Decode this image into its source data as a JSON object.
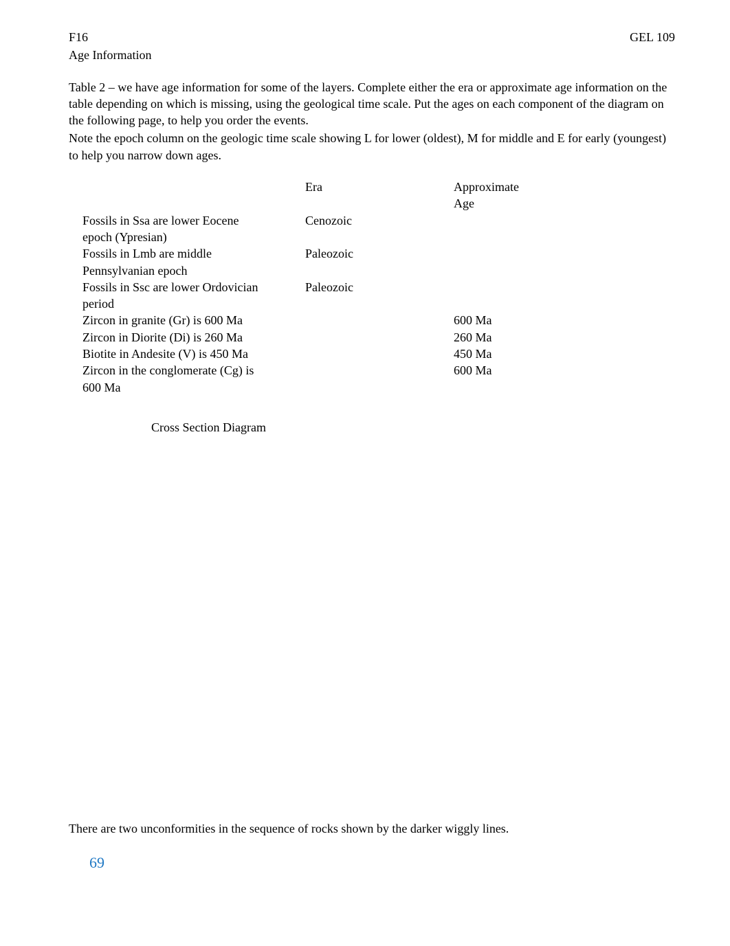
{
  "header": {
    "left": "F16",
    "right": "GEL 109",
    "sub": "Age Information"
  },
  "paragraph1": "Table 2 – we have age information for some of the layers.   Complete either the era or approximate age information on the table depending on which is missing, using the geological time scale. Put the ages on each component of the diagram on the following page, to help you order the events.",
  "paragraph2": "Note the epoch column on the geologic time scale showing L for lower (oldest), M for middle and E for early (youngest) to help you narrow down ages.",
  "table": {
    "headers": {
      "c1": "",
      "c2": "Era",
      "c3_line1": "Approximate",
      "c3_line2": "Age"
    },
    "rows": [
      {
        "c1_line1": "Fossils in Ssa are lower Eocene",
        "c1_line2": "epoch (Ypresian)",
        "c2": "Cenozoic",
        "c3": ""
      },
      {
        "c1_line1": "Fossils in Lmb are middle",
        "c1_line2": "Pennsylvanian epoch",
        "c2": "Paleozoic",
        "c3": ""
      },
      {
        "c1_line1": "Fossils in Ssc are lower Ordovician",
        "c1_line2": "period",
        "c2": "Paleozoic",
        "c3": ""
      },
      {
        "c1_line1": "Zircon in granite (Gr) is 600 Ma",
        "c1_line2": "",
        "c2": "",
        "c3": "600 Ma"
      },
      {
        "c1_line1": "Zircon in Diorite (Di) is 260 Ma",
        "c1_line2": "",
        "c2": "",
        "c3": "260 Ma"
      },
      {
        "c1_line1": "Biotite in Andesite (V) is 450 Ma",
        "c1_line2": "",
        "c2": "",
        "c3": "450 Ma"
      },
      {
        "c1_line1": "Zircon in the conglomerate (Cg) is",
        "c1_line2": "600 Ma",
        "c2": "",
        "c3": "600 Ma"
      }
    ]
  },
  "cross_section_label": "Cross Section Diagram",
  "bottom_paragraph": "There are two unconformities in the sequence of rocks shown by the darker wiggly lines.",
  "page_number": "69"
}
